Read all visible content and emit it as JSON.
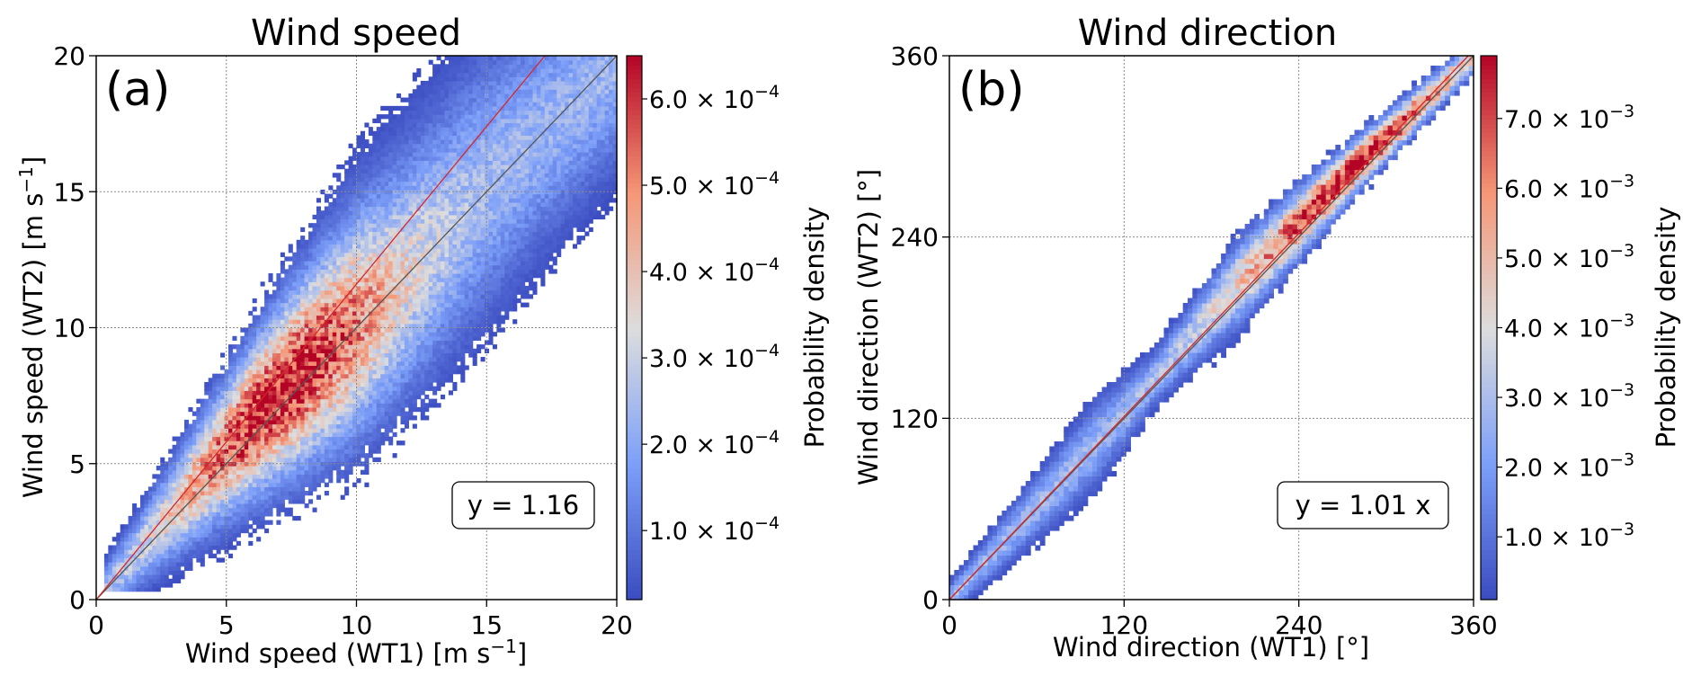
{
  "chart_data": [
    {
      "type": "heatmap",
      "title": "Wind speed",
      "panel_label": "(a)",
      "xlabel": "Wind speed (WT1) [m s",
      "xlabel_sup": "−1",
      "xlabel_end": "]",
      "ylabel": "Wind speed (WT2) [m s",
      "ylabel_sup": "−1",
      "ylabel_end": "]",
      "xlim": [
        0,
        20
      ],
      "ylim": [
        0,
        20
      ],
      "xticks": [
        "0",
        "5",
        "10",
        "15",
        "20"
      ],
      "yticks": [
        "0",
        "5",
        "10",
        "15",
        "20"
      ],
      "grid": true,
      "fit_slope": 1.16,
      "fit_label": "y = 1.16",
      "fit_color": "#d62728",
      "identity_color": "#555555",
      "colorbar": {
        "label": "Probability density",
        "vmin": 2e-05,
        "vmax": 0.00065,
        "ticks": [
          {
            "value": 0.0001,
            "mantissa": "1.0",
            "exp": "−4"
          },
          {
            "value": 0.0002,
            "mantissa": "2.0",
            "exp": "−4"
          },
          {
            "value": 0.0003,
            "mantissa": "3.0",
            "exp": "−4"
          },
          {
            "value": 0.0004,
            "mantissa": "4.0",
            "exp": "−4"
          },
          {
            "value": 0.0005,
            "mantissa": "5.0",
            "exp": "−4"
          },
          {
            "value": 0.0006,
            "mantissa": "6.0",
            "exp": "−4"
          }
        ],
        "colormap": "coolwarm"
      },
      "density_model": {
        "ridge": [
          [
            0,
            0
          ],
          [
            5,
            5.4
          ],
          [
            10,
            10.7
          ],
          [
            15,
            15.6
          ],
          [
            20,
            19.6
          ]
        ],
        "spread": [
          [
            0,
            0.5
          ],
          [
            5,
            1.6
          ],
          [
            10,
            2.8
          ],
          [
            15,
            2.9
          ],
          [
            20,
            2.2
          ]
        ],
        "peak": {
          "x": 7,
          "y": 7.8
        },
        "peak_density": 0.00065,
        "x_extent": [
          0.3,
          20
        ],
        "y_extent": [
          0.3,
          20
        ]
      }
    },
    {
      "type": "heatmap",
      "title": "Wind direction",
      "panel_label": "(b)",
      "xlabel": "Wind direction (WT1) [°]",
      "ylabel": "Wind direction (WT2) [°]",
      "xlim": [
        0,
        360
      ],
      "ylim": [
        0,
        360
      ],
      "xticks": [
        "0",
        "120",
        "240",
        "360"
      ],
      "yticks": [
        "0",
        "120",
        "240",
        "360"
      ],
      "grid": true,
      "fit_slope": 1.01,
      "fit_label": "y = 1.01 x",
      "fit_color": "#d62728",
      "identity_color": "#555555",
      "colorbar": {
        "label": "Probability density",
        "vmin": 0.0001,
        "vmax": 0.0079,
        "ticks": [
          {
            "value": 0.001,
            "mantissa": "1.0",
            "exp": "−3"
          },
          {
            "value": 0.002,
            "mantissa": "2.0",
            "exp": "−3"
          },
          {
            "value": 0.003,
            "mantissa": "3.0",
            "exp": "−3"
          },
          {
            "value": 0.004,
            "mantissa": "4.0",
            "exp": "−3"
          },
          {
            "value": 0.005,
            "mantissa": "5.0",
            "exp": "−3"
          },
          {
            "value": 0.006,
            "mantissa": "6.0",
            "exp": "−3"
          },
          {
            "value": 0.007,
            "mantissa": "7.0",
            "exp": "−3"
          }
        ],
        "colormap": "coolwarm"
      },
      "density_model": {
        "ridge": [
          [
            0,
            0
          ],
          [
            80,
            82
          ],
          [
            120,
            124
          ],
          [
            200,
            210
          ],
          [
            280,
            288
          ],
          [
            360,
            360
          ]
        ],
        "spread": [
          [
            0,
            6
          ],
          [
            60,
            12
          ],
          [
            100,
            16
          ],
          [
            140,
            10
          ],
          [
            200,
            16
          ],
          [
            280,
            10
          ],
          [
            360,
            6
          ]
        ],
        "peak": {
          "x": 278,
          "y": 285
        },
        "peak_density": 0.0079,
        "x_extent": [
          0,
          360
        ],
        "y_extent": [
          0,
          360
        ]
      }
    }
  ]
}
